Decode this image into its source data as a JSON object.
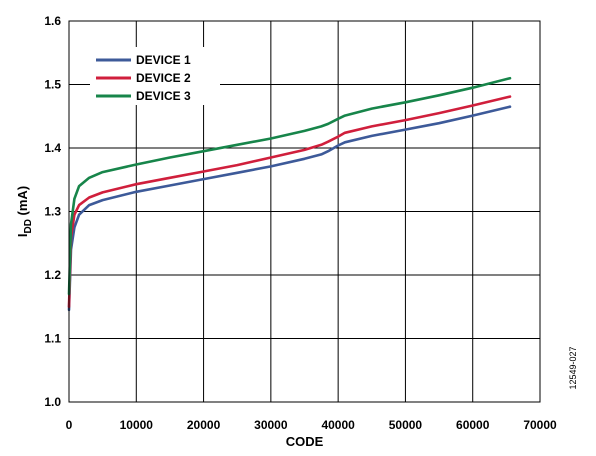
{
  "chart_data": {
    "type": "line",
    "xlabel": "CODE",
    "ylabel_main": "I",
    "ylabel_sub": "DD",
    "ylabel_unit": " (mA)",
    "figure_id": "12549-027",
    "xlim": [
      0,
      70000
    ],
    "ylim": [
      1.0,
      1.6
    ],
    "x_ticks": [
      0,
      10000,
      20000,
      30000,
      40000,
      50000,
      60000,
      70000
    ],
    "y_ticks": [
      "1.0",
      "1.1",
      "1.2",
      "1.3",
      "1.4",
      "1.5",
      "1.6"
    ],
    "grid": true,
    "legend_position": "top-left",
    "series": [
      {
        "name": "DEVICE 1",
        "color": "#3d5a99",
        "points": [
          [
            0,
            1.145
          ],
          [
            300,
            1.24
          ],
          [
            800,
            1.275
          ],
          [
            1500,
            1.295
          ],
          [
            3000,
            1.31
          ],
          [
            5000,
            1.318
          ],
          [
            10000,
            1.331
          ],
          [
            15000,
            1.341
          ],
          [
            20000,
            1.351
          ],
          [
            25000,
            1.361
          ],
          [
            30000,
            1.371
          ],
          [
            35000,
            1.383
          ],
          [
            37500,
            1.39
          ],
          [
            38500,
            1.395
          ],
          [
            40000,
            1.404
          ],
          [
            41000,
            1.409
          ],
          [
            45000,
            1.419
          ],
          [
            50000,
            1.429
          ],
          [
            55000,
            1.439
          ],
          [
            60000,
            1.451
          ],
          [
            65535,
            1.465
          ]
        ]
      },
      {
        "name": "DEVICE 2",
        "color": "#d01f3c",
        "points": [
          [
            0,
            1.15
          ],
          [
            300,
            1.26
          ],
          [
            800,
            1.295
          ],
          [
            1500,
            1.31
          ],
          [
            3000,
            1.322
          ],
          [
            5000,
            1.33
          ],
          [
            10000,
            1.343
          ],
          [
            15000,
            1.353
          ],
          [
            20000,
            1.363
          ],
          [
            25000,
            1.373
          ],
          [
            30000,
            1.385
          ],
          [
            35000,
            1.397
          ],
          [
            37500,
            1.405
          ],
          [
            38500,
            1.41
          ],
          [
            40000,
            1.418
          ],
          [
            41000,
            1.424
          ],
          [
            45000,
            1.434
          ],
          [
            50000,
            1.444
          ],
          [
            55000,
            1.455
          ],
          [
            60000,
            1.467
          ],
          [
            65535,
            1.481
          ]
        ]
      },
      {
        "name": "DEVICE 3",
        "color": "#17854a",
        "points": [
          [
            0,
            1.17
          ],
          [
            300,
            1.28
          ],
          [
            800,
            1.32
          ],
          [
            1500,
            1.34
          ],
          [
            3000,
            1.353
          ],
          [
            5000,
            1.362
          ],
          [
            10000,
            1.374
          ],
          [
            15000,
            1.385
          ],
          [
            20000,
            1.395
          ],
          [
            25000,
            1.405
          ],
          [
            30000,
            1.415
          ],
          [
            35000,
            1.427
          ],
          [
            37500,
            1.434
          ],
          [
            38500,
            1.438
          ],
          [
            40000,
            1.446
          ],
          [
            41000,
            1.451
          ],
          [
            45000,
            1.462
          ],
          [
            50000,
            1.472
          ],
          [
            55000,
            1.483
          ],
          [
            60000,
            1.495
          ],
          [
            65535,
            1.51
          ]
        ]
      }
    ]
  }
}
